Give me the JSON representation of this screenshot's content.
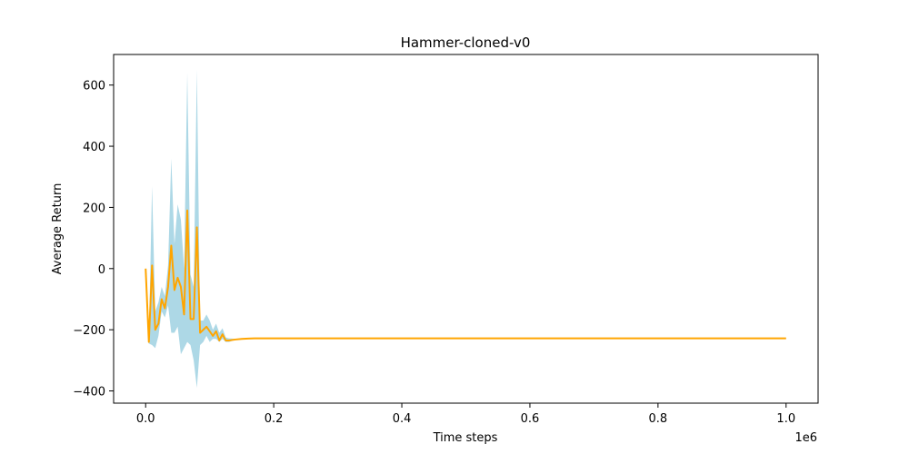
{
  "chart_data": {
    "type": "line",
    "title": "Hammer-cloned-v0",
    "xlabel": "Time steps",
    "ylabel": "Average Return",
    "x_offset_label": "1e6",
    "xlim": [
      -50000,
      1050000
    ],
    "ylim": [
      -440,
      700
    ],
    "xticks": [
      0,
      0.2,
      0.4,
      0.6,
      0.8,
      1.0
    ],
    "xtick_labels": [
      "0.0",
      "0.2",
      "0.4",
      "0.6",
      "0.8",
      "1.0"
    ],
    "yticks": [
      -400,
      -200,
      0,
      200,
      400,
      600
    ],
    "ytick_labels": [
      "−400",
      "−200",
      "0",
      "200",
      "400",
      "600"
    ],
    "grid": false,
    "line_color": "#ffa500",
    "band_color": "#add8e6",
    "series": [
      {
        "x": [
          0,
          5000,
          10000,
          15000,
          20000,
          25000,
          30000,
          35000,
          40000,
          45000,
          50000,
          55000,
          60000,
          65000,
          70000,
          75000,
          80000,
          85000,
          90000,
          95000,
          100000,
          105000,
          110000,
          115000,
          120000,
          125000,
          130000,
          140000,
          150000,
          160000,
          170000,
          180000,
          200000,
          250000,
          300000,
          350000,
          400000,
          450000,
          500000,
          550000,
          600000,
          650000,
          700000,
          750000,
          800000,
          850000,
          900000,
          950000,
          1000000
        ],
        "y": [
          0,
          -240,
          10,
          -200,
          -180,
          -100,
          -130,
          -60,
          75,
          -70,
          -30,
          -60,
          -150,
          190,
          -165,
          -165,
          135,
          -210,
          -200,
          -190,
          -205,
          -220,
          -205,
          -235,
          -215,
          -235,
          -235,
          -232,
          -230,
          -229,
          -228,
          -228,
          -228,
          -228,
          -228,
          -228,
          -228,
          -228,
          -228,
          -228,
          -228,
          -228,
          -228,
          -228,
          -228,
          -228,
          -228,
          -228,
          -228
        ],
        "y_lower": [
          0,
          -245,
          -250,
          -260,
          -220,
          -140,
          -160,
          -120,
          -210,
          -210,
          -190,
          -280,
          -260,
          -240,
          -250,
          -300,
          -390,
          -250,
          -240,
          -220,
          -240,
          -230,
          -230,
          -240,
          -230,
          -240,
          -240,
          -233,
          -231,
          -230,
          -229,
          -229,
          -229,
          -229,
          -229,
          -229,
          -229,
          -229,
          -229,
          -229,
          -229,
          -229,
          -229,
          -229,
          -229,
          -229,
          -229,
          -229,
          -229
        ],
        "y_upper": [
          0,
          -230,
          270,
          -140,
          -110,
          -60,
          -90,
          10,
          360,
          80,
          210,
          160,
          0,
          640,
          -20,
          -60,
          650,
          -170,
          -170,
          -150,
          -170,
          -200,
          -180,
          -210,
          -195,
          -225,
          -228,
          -230,
          -228,
          -227,
          -227,
          -227,
          -227,
          -227,
          -227,
          -227,
          -227,
          -227,
          -227,
          -227,
          -227,
          -227,
          -227,
          -227,
          -227,
          -227,
          -227,
          -227,
          -227
        ]
      }
    ]
  }
}
